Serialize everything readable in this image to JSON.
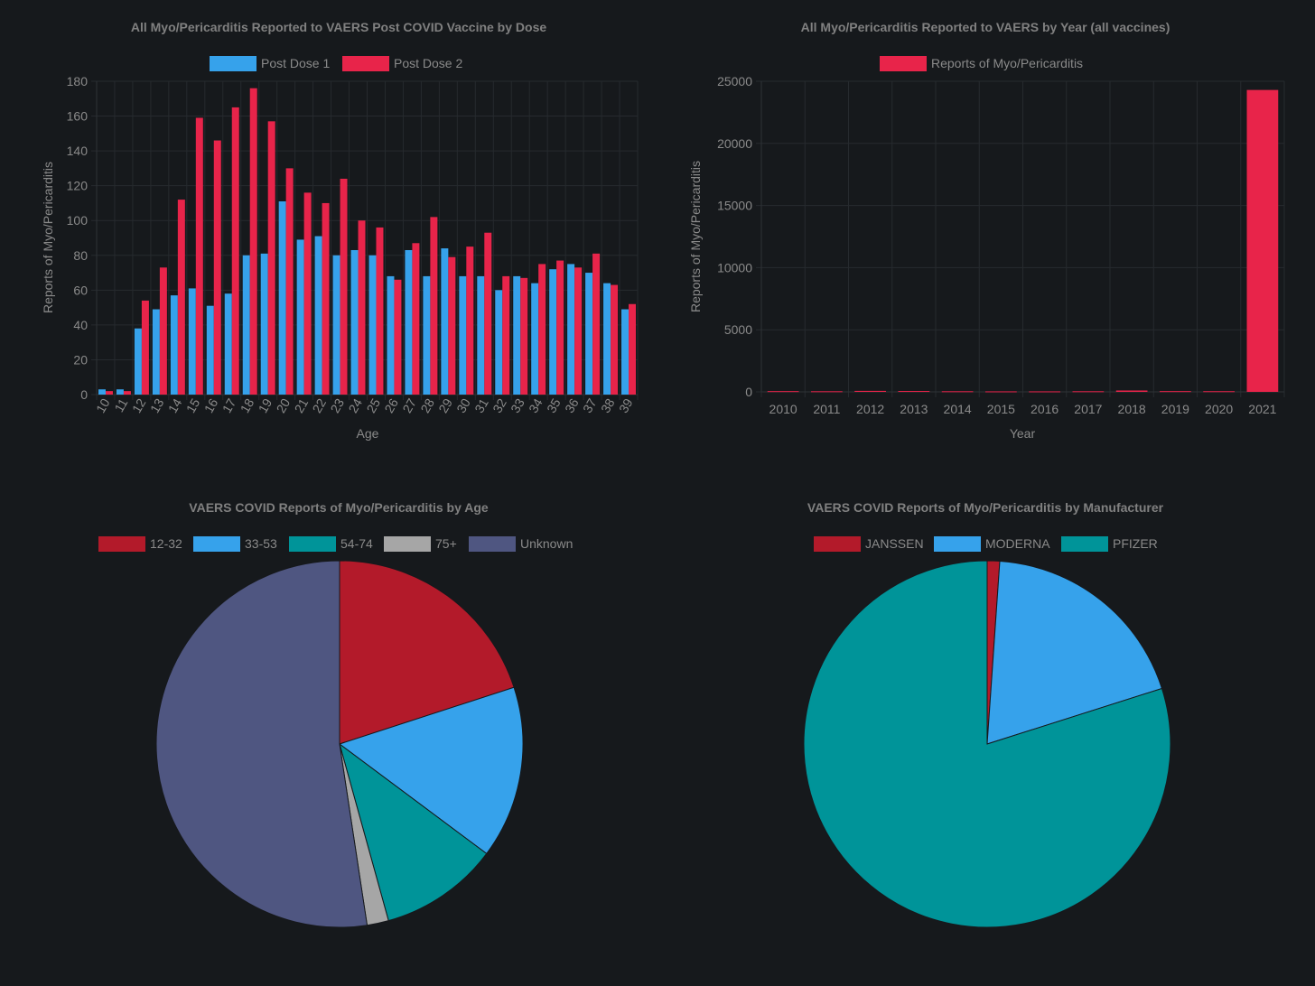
{
  "chart_data": [
    {
      "type": "bar",
      "title": "All Myo/Pericarditis Reported to VAERS Post COVID Vaccine by Dose",
      "xlabel": "Age",
      "ylabel": "Reports of Myo/Pericarditis",
      "ylim": [
        0,
        180
      ],
      "yticks": [
        "0",
        "20",
        "40",
        "60",
        "80",
        "100",
        "120",
        "140",
        "160",
        "180"
      ],
      "categories": [
        "10",
        "11",
        "12",
        "13",
        "14",
        "15",
        "16",
        "17",
        "18",
        "19",
        "20",
        "21",
        "22",
        "23",
        "24",
        "25",
        "26",
        "27",
        "28",
        "29",
        "30",
        "31",
        "32",
        "33",
        "34",
        "35",
        "36",
        "37",
        "38",
        "39"
      ],
      "series": [
        {
          "name": "Post Dose 1",
          "color": "#36a2eb",
          "values": [
            3,
            3,
            38,
            49,
            57,
            61,
            51,
            58,
            80,
            81,
            111,
            89,
            91,
            80,
            83,
            80,
            68,
            83,
            68,
            84,
            68,
            68,
            60,
            68,
            64,
            72,
            75,
            70,
            64,
            49
          ]
        },
        {
          "name": "Post Dose 2",
          "color": "#e8244a",
          "values": [
            2,
            2,
            54,
            73,
            112,
            159,
            146,
            165,
            176,
            157,
            130,
            116,
            110,
            124,
            100,
            96,
            66,
            87,
            102,
            79,
            85,
            93,
            68,
            67,
            75,
            77,
            73,
            81,
            63,
            52
          ]
        }
      ]
    },
    {
      "type": "bar",
      "title": "All Myo/Pericarditis Reported to VAERS by Year (all vaccines)",
      "xlabel": "Year",
      "ylabel": "Reports of Myo/Pericarditis",
      "ylim": [
        0,
        25000
      ],
      "yticks": [
        "0",
        "5000",
        "10000",
        "15000",
        "20000",
        "25000"
      ],
      "categories": [
        "2010",
        "2011",
        "2012",
        "2013",
        "2014",
        "2015",
        "2016",
        "2017",
        "2018",
        "2019",
        "2020",
        "2021"
      ],
      "series": [
        {
          "name": "Reports of Myo/Pericarditis",
          "color": "#e8244a",
          "values": [
            60,
            50,
            80,
            70,
            50,
            40,
            40,
            50,
            110,
            60,
            55,
            24300
          ]
        }
      ]
    },
    {
      "type": "pie",
      "title": "VAERS COVID Reports of Myo/Pericarditis by Age",
      "labels": [
        "12-32",
        "33-53",
        "54-74",
        "75+",
        "Unknown"
      ],
      "values": [
        20,
        15.2,
        10.5,
        1.9,
        52.4
      ],
      "colors": [
        "#b31a2a",
        "#36a2eb",
        "#009499",
        "#a6a6a6",
        "#4f5681"
      ]
    },
    {
      "type": "pie",
      "title": "VAERS COVID Reports of Myo/Pericarditis by Manufacturer",
      "labels": [
        "JANSSEN",
        "MODERNA",
        "PFIZER"
      ],
      "values": [
        1.1,
        19,
        79.9
      ],
      "colors": [
        "#b31a2a",
        "#36a2eb",
        "#009499"
      ]
    }
  ]
}
